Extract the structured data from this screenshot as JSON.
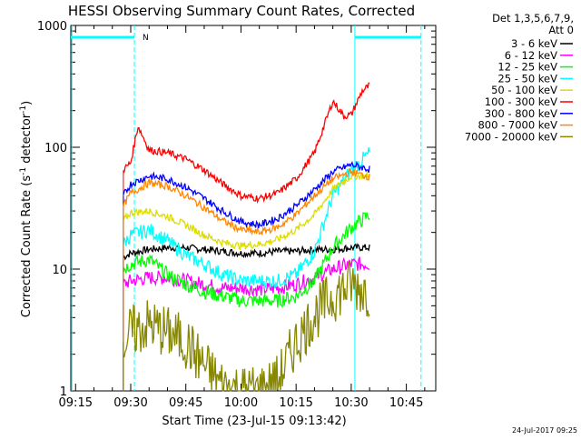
{
  "chart_data": {
    "type": "line",
    "title": "HESSI Observing Summary Count Rates, Corrected",
    "xlabel": "Start Time (23-Jul-15 09:13:42)",
    "ylabel_parts": [
      "Corrected Count Rate (s",
      "-1",
      " detector",
      "-1",
      ")"
    ],
    "x_unit": "minutes",
    "xlim": [
      "09:13:42",
      "10:53:00"
    ],
    "x_ticks": [
      "09:15",
      "09:30",
      "09:45",
      "10:00",
      "10:15",
      "10:30",
      "10:45"
    ],
    "y_scale": "log",
    "ylim": [
      1,
      1000
    ],
    "y_ticks": [
      "1",
      "10",
      "100",
      "1000"
    ],
    "legend_title": [
      "Det 1,3,5,6,7,9,",
      "Att 0"
    ],
    "legend_position": "right",
    "annotations": [
      {
        "text": "N",
        "x": "09:31"
      },
      {
        "text": "24-Jul-2017 09:25"
      }
    ],
    "night_bars": [
      {
        "x_start": "09:13:42",
        "x_end": "09:31"
      },
      {
        "x_start": "10:31",
        "x_end": "10:49"
      }
    ],
    "markers": [
      {
        "x": "09:14",
        "color": "#00ffff",
        "style": "solid"
      },
      {
        "x": "09:31",
        "color": "#00ffff",
        "style": "dashed"
      },
      {
        "x": "10:31",
        "color": "#00ffff",
        "style": "solid"
      },
      {
        "x": "10:49",
        "color": "#00ffff",
        "style": "dashed"
      }
    ],
    "series": [
      {
        "name": "3 - 6 keV",
        "color": "#000000",
        "x": [
          "09:28",
          "09:30",
          "09:35",
          "09:40",
          "09:45",
          "09:50",
          "09:55",
          "10:00",
          "10:05",
          "10:10",
          "10:15",
          "10:20",
          "10:25",
          "10:30",
          "10:35"
        ],
        "y": [
          12.5,
          13.5,
          14.5,
          15,
          15,
          14.5,
          14,
          13.5,
          13.5,
          14,
          14,
          14.5,
          14.5,
          15,
          15
        ]
      },
      {
        "name": "6 - 12 keV",
        "color": "#ff00ff",
        "x": [
          "09:28",
          "09:30",
          "09:35",
          "09:40",
          "09:45",
          "09:50",
          "09:55",
          "10:00",
          "10:05",
          "10:10",
          "10:15",
          "10:20",
          "10:25",
          "10:30",
          "10:35"
        ],
        "y": [
          7.5,
          8,
          8.5,
          8.5,
          8,
          7.5,
          7,
          7,
          6.8,
          7,
          7.5,
          8.5,
          10,
          11,
          11
        ]
      },
      {
        "name": "12 - 25 keV",
        "color": "#00ff00",
        "x": [
          "09:28",
          "09:30",
          "09:35",
          "09:40",
          "09:45",
          "09:50",
          "09:55",
          "10:00",
          "10:05",
          "10:10",
          "10:15",
          "10:20",
          "10:25",
          "10:30",
          "10:35"
        ],
        "y": [
          10,
          11,
          12,
          9,
          7.5,
          6.5,
          6,
          5.5,
          5.5,
          5.5,
          6,
          8,
          15,
          22,
          28
        ]
      },
      {
        "name": "25 - 50 keV",
        "color": "#00ffff",
        "x": [
          "09:28",
          "09:30",
          "09:35",
          "09:40",
          "09:45",
          "09:50",
          "09:55",
          "10:00",
          "10:05",
          "10:10",
          "10:15",
          "10:20",
          "10:25",
          "10:30",
          "10:35"
        ],
        "y": [
          16,
          19,
          21,
          17,
          13,
          11,
          9,
          8,
          8,
          8,
          9,
          14,
          40,
          65,
          90
        ]
      },
      {
        "name": "50 - 100 keV",
        "color": "#dddd00",
        "x": [
          "09:28",
          "09:30",
          "09:35",
          "09:40",
          "09:45",
          "09:50",
          "09:55",
          "10:00",
          "10:05",
          "10:10",
          "10:15",
          "10:20",
          "10:25",
          "10:30",
          "10:35"
        ],
        "y": [
          25,
          29,
          30,
          27,
          23,
          19,
          16.5,
          15.5,
          16,
          17.5,
          21,
          28,
          45,
          58,
          58
        ]
      },
      {
        "name": "100 - 300 keV",
        "color": "#ff0000",
        "x": [
          "09:28",
          "09:30",
          "09:32",
          "09:35",
          "09:40",
          "09:45",
          "09:50",
          "09:55",
          "10:00",
          "10:05",
          "10:10",
          "10:15",
          "10:20",
          "10:25",
          "10:28",
          "10:30",
          "10:33",
          "10:35"
        ],
        "y": [
          65,
          75,
          150,
          95,
          90,
          80,
          65,
          50,
          40,
          38,
          42,
          55,
          90,
          240,
          180,
          185,
          290,
          320
        ]
      },
      {
        "name": "300 - 800 keV",
        "color": "#0000ff",
        "x": [
          "09:28",
          "09:30",
          "09:35",
          "09:40",
          "09:45",
          "09:50",
          "09:55",
          "10:00",
          "10:05",
          "10:10",
          "10:15",
          "10:20",
          "10:25",
          "10:30",
          "10:35"
        ],
        "y": [
          40,
          50,
          58,
          55,
          47,
          38,
          30,
          24.5,
          23,
          26,
          33,
          45,
          63,
          72,
          66
        ]
      },
      {
        "name": "800 - 7000 keV",
        "color": "#ff8800",
        "x": [
          "09:28",
          "09:30",
          "09:35",
          "09:40",
          "09:45",
          "09:50",
          "09:55",
          "10:00",
          "10:05",
          "10:10",
          "10:15",
          "10:20",
          "10:25",
          "10:30",
          "10:35"
        ],
        "y": [
          33,
          42,
          51,
          48,
          40,
          32,
          25,
          21,
          20,
          22,
          28,
          40,
          55,
          63,
          57
        ]
      },
      {
        "name": "7000 - 20000 keV",
        "color": "#888800",
        "x": [
          "09:28",
          "09:30",
          "09:35",
          "09:40",
          "09:45",
          "09:50",
          "09:55",
          "10:00",
          "10:05",
          "10:10",
          "10:15",
          "10:20",
          "10:25",
          "10:30",
          "10:35"
        ],
        "y": [
          2.5,
          3,
          3.5,
          3,
          2.5,
          1.6,
          1.1,
          1,
          1,
          1.2,
          2.5,
          4.2,
          6,
          7.5,
          6.5
        ]
      }
    ]
  }
}
